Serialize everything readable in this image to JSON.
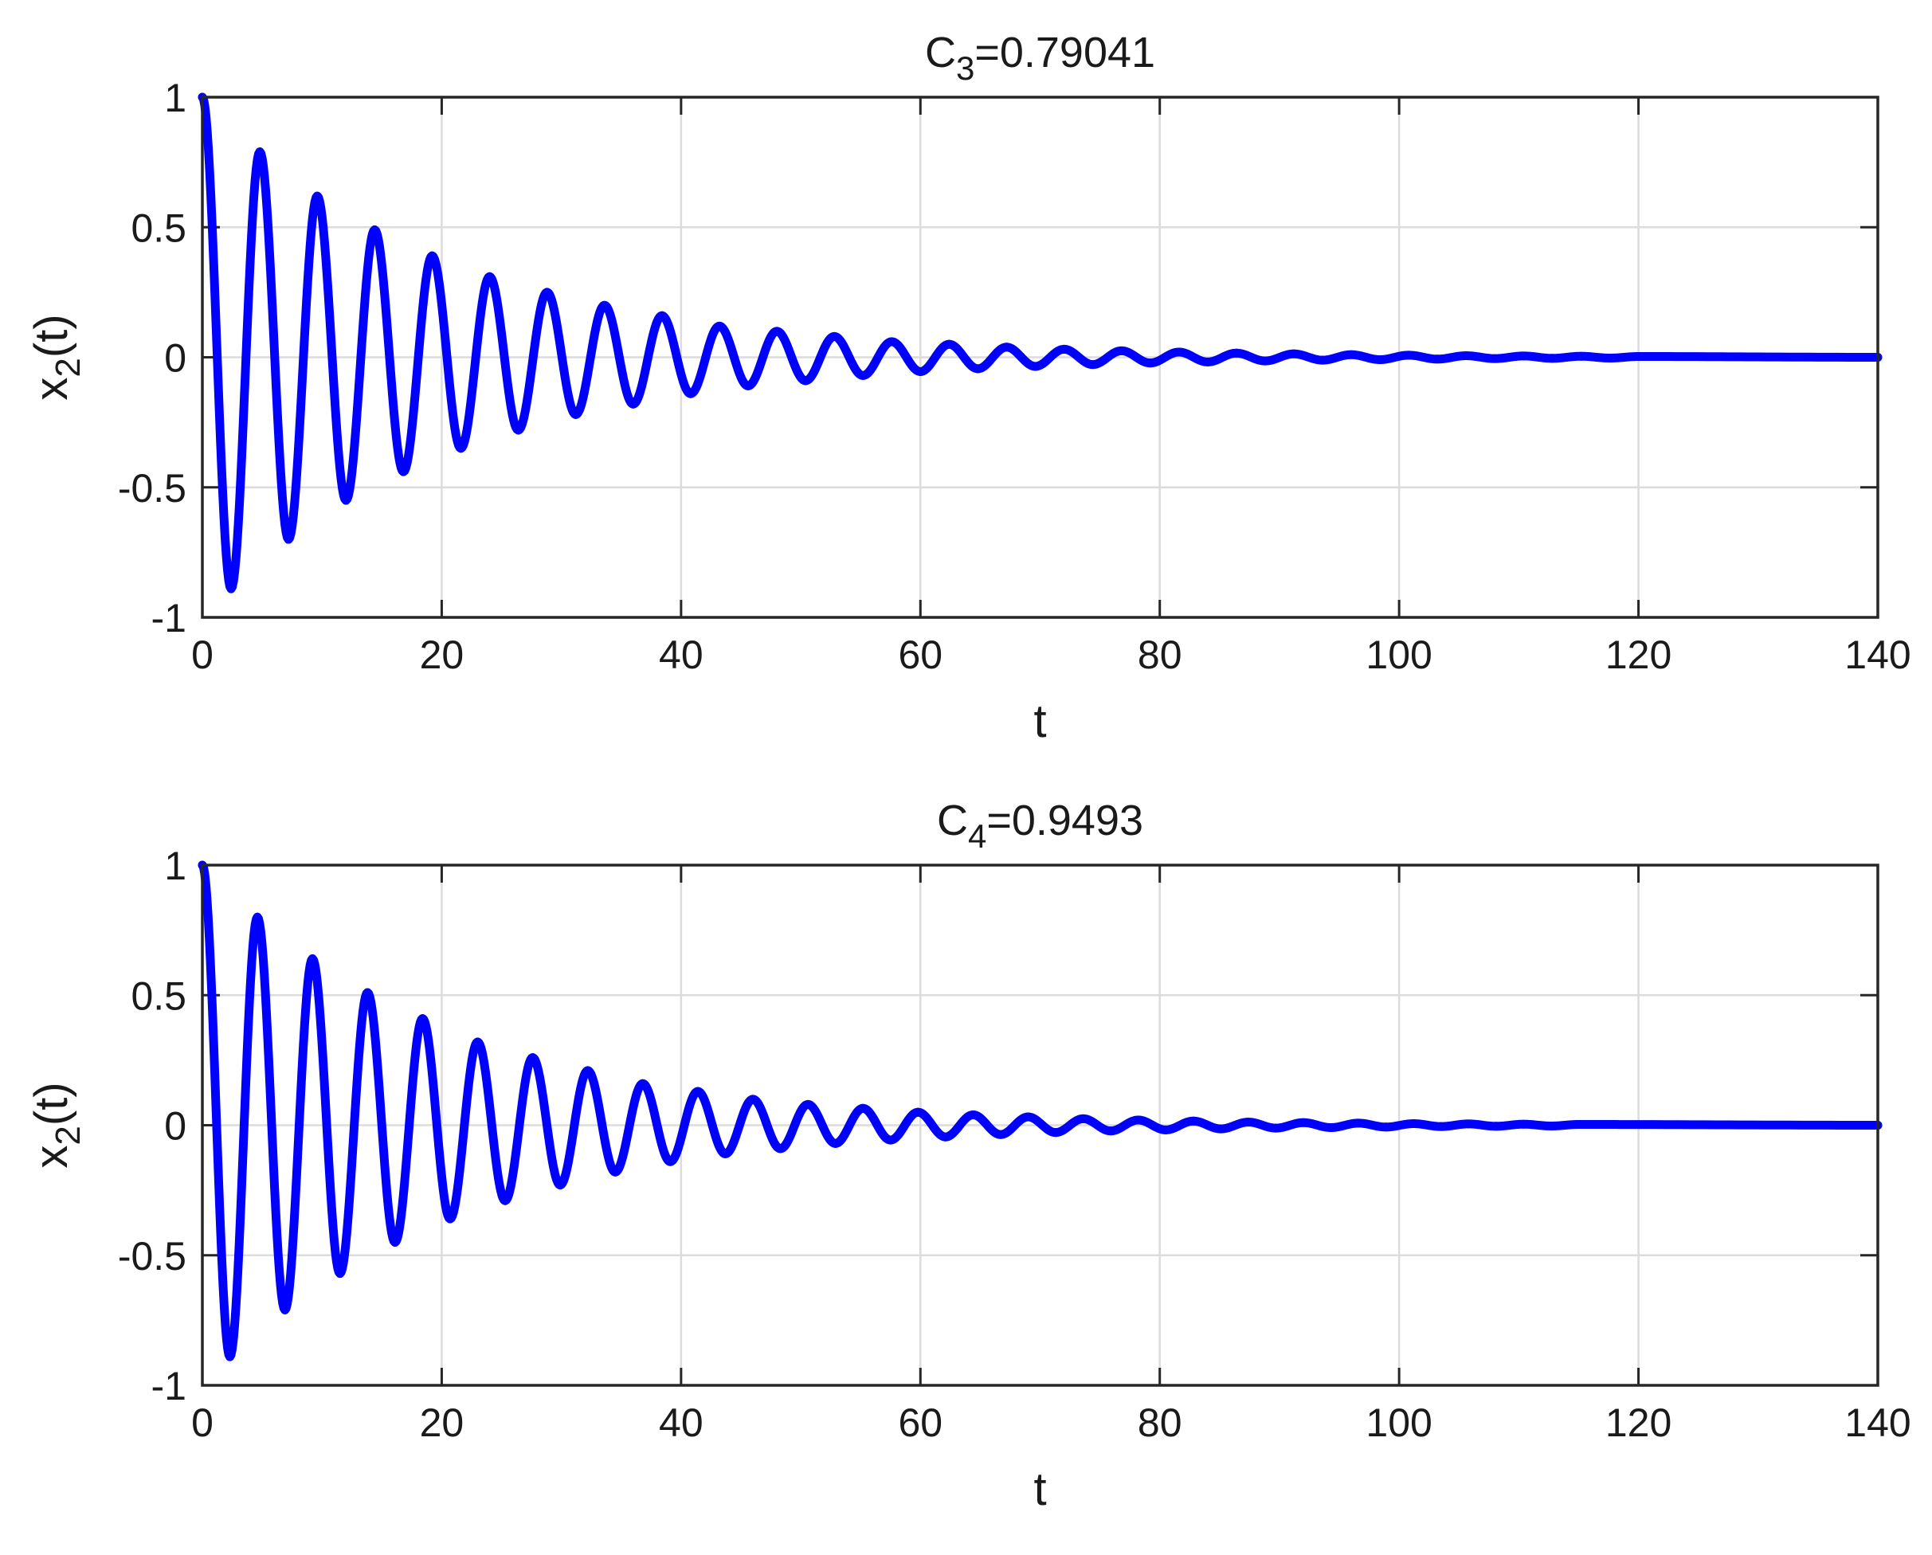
{
  "chart_data": [
    {
      "type": "line",
      "title": "C",
      "title_sub": "3",
      "title_rest": "=0.79041",
      "xlabel": "t",
      "ylabel": "x",
      "ylabel_sub": "2",
      "ylabel_rest": "(t)",
      "xlim": [
        0,
        140
      ],
      "ylim": [
        -1,
        1
      ],
      "x_ticks": [
        "0",
        "20",
        "40",
        "60",
        "80",
        "100",
        "120",
        "140"
      ],
      "y_ticks": [
        "1",
        "0.5",
        "0",
        "-0.5",
        "-1"
      ],
      "grid": true,
      "line_color": "#0000ff",
      "series": [
        {
          "x": [
            0,
            2.4,
            4.8,
            7.2,
            9.6,
            12,
            14.4,
            16.8,
            19.2,
            21.6,
            24,
            26.4,
            28.8,
            31.2,
            33.6,
            36,
            38.4,
            40.8,
            43.2,
            45.6,
            48,
            50.4,
            52.8,
            55.2,
            57.6,
            60,
            62.4,
            64.8,
            67.2,
            69.6,
            72,
            74.4,
            76.8,
            79.2,
            81.6,
            84,
            86.4,
            88.8,
            91.2,
            93.6,
            96,
            98.4,
            100.8,
            103.2,
            105.6,
            108,
            110.4,
            112.8,
            115.2,
            117.6,
            120,
            140
          ],
          "y": [
            1,
            -0.89,
            0.79,
            -0.7,
            0.62,
            -0.55,
            0.49,
            -0.44,
            0.39,
            -0.35,
            0.31,
            -0.28,
            0.25,
            -0.22,
            0.2,
            -0.18,
            0.16,
            -0.14,
            0.12,
            -0.11,
            0.1,
            -0.09,
            0.08,
            -0.07,
            0.06,
            -0.055,
            0.05,
            -0.044,
            0.039,
            -0.035,
            0.031,
            -0.028,
            0.025,
            -0.022,
            0.02,
            -0.018,
            0.016,
            -0.014,
            0.013,
            -0.011,
            0.01,
            -0.009,
            0.008,
            -0.007,
            0.006,
            -0.005,
            0.005,
            -0.004,
            0.004,
            -0.003,
            0.003,
            0
          ]
        }
      ]
    },
    {
      "type": "line",
      "title": "C",
      "title_sub": "4",
      "title_rest": "=0.9493",
      "xlabel": "t",
      "ylabel": "x",
      "ylabel_sub": "2",
      "ylabel_rest": "(t)",
      "xlim": [
        0,
        140
      ],
      "ylim": [
        -1,
        1
      ],
      "x_ticks": [
        "0",
        "20",
        "40",
        "60",
        "80",
        "100",
        "120",
        "140"
      ],
      "y_ticks": [
        "1",
        "0.5",
        "0",
        "-0.5",
        "-1"
      ],
      "grid": true,
      "line_color": "#0000ff",
      "series": [
        {
          "x": [
            0,
            2.3,
            4.6,
            6.9,
            9.2,
            11.5,
            13.8,
            16.1,
            18.4,
            20.7,
            23,
            25.3,
            27.6,
            29.9,
            32.2,
            34.5,
            36.8,
            39.1,
            41.4,
            43.7,
            46,
            48.3,
            50.6,
            52.9,
            55.2,
            57.5,
            59.8,
            62.1,
            64.4,
            66.7,
            69,
            71.3,
            73.6,
            75.9,
            78.2,
            80.5,
            82.8,
            85.1,
            87.4,
            89.7,
            92,
            94.3,
            96.6,
            98.9,
            101.2,
            103.5,
            105.8,
            108.1,
            110.4,
            112.7,
            115,
            140
          ],
          "y": [
            1,
            -0.89,
            0.8,
            -0.71,
            0.64,
            -0.57,
            0.51,
            -0.45,
            0.41,
            -0.36,
            0.32,
            -0.29,
            0.26,
            -0.23,
            0.21,
            -0.18,
            0.16,
            -0.14,
            0.13,
            -0.11,
            0.1,
            -0.09,
            0.08,
            -0.07,
            0.065,
            -0.057,
            0.05,
            -0.045,
            0.04,
            -0.036,
            0.032,
            -0.028,
            0.025,
            -0.022,
            0.02,
            -0.018,
            0.016,
            -0.014,
            0.012,
            -0.011,
            0.01,
            -0.009,
            0.008,
            -0.007,
            0.006,
            -0.005,
            0.005,
            -0.004,
            0.004,
            -0.003,
            0.003,
            0
          ]
        }
      ]
    }
  ]
}
